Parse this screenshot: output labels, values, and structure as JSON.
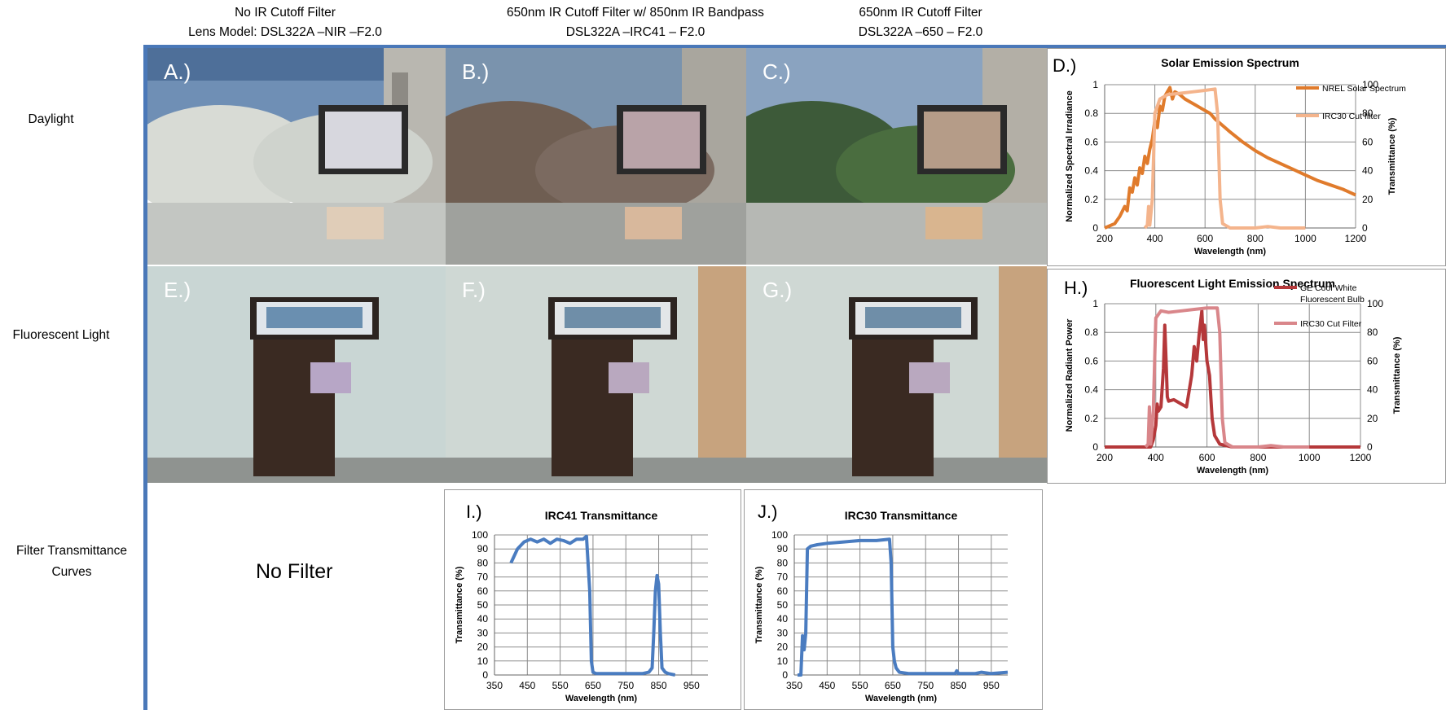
{
  "headers": {
    "col_a_line1": "No IR Cutoff Filter",
    "col_a_line2": "Lens Model:  DSL322A –NIR –F2.0",
    "col_b_line1": "650nm IR Cutoff Filter w/ 850nm IR Bandpass",
    "col_b_line2": "DSL322A –IRC41 – F2.0",
    "col_c_line1": "650nm IR Cutoff Filter",
    "col_c_line2": "DSL322A –650 – F2.0"
  },
  "rows": {
    "daylight": "Daylight",
    "fluorescent": "Fluorescent Light",
    "filter_line1": "Filter Transmittance",
    "filter_line2": "Curves"
  },
  "panels": {
    "a": "A.)",
    "b": "B.)",
    "c": "C.)",
    "e": "E.)",
    "f": "F.)",
    "g": "G.)"
  },
  "no_filter": "No Filter",
  "colors": {
    "frame": "#4a78b8",
    "solar": "#e07b2c",
    "irc30_light": "#f4b48c",
    "bulb": "#b5383a",
    "irc30_pink": "#d9868a",
    "transmittance": "#4a7cc0"
  },
  "chart_data": [
    {
      "id": "D",
      "panel_label": "D.)",
      "type": "line",
      "title": "Solar Emission Spectrum",
      "xlabel": "Wavelength (nm)",
      "ylabel": "Normalized Spectral Irradiance",
      "y2label": "Transmittance (%)",
      "xlim": [
        200,
        1200
      ],
      "xticks": [
        200,
        400,
        600,
        800,
        1000,
        1200
      ],
      "ylim": [
        0,
        1
      ],
      "yticks": [
        0,
        0.2,
        0.4,
        0.6,
        0.8,
        1
      ],
      "y2lim": [
        0,
        100
      ],
      "y2ticks": [
        0,
        20,
        40,
        60,
        80,
        100
      ],
      "grid": true,
      "legend": [
        "NREL Solar Spectrum",
        "IRC30 Cut filter"
      ],
      "series": [
        {
          "name": "NREL Solar Spectrum",
          "color": "#e07b2c",
          "axis": "y",
          "x": [
            200,
            240,
            260,
            280,
            290,
            300,
            310,
            320,
            330,
            340,
            350,
            360,
            370,
            380,
            390,
            400,
            410,
            420,
            430,
            440,
            450,
            460,
            470,
            480,
            500,
            520,
            540,
            560,
            580,
            600,
            620,
            640,
            660,
            680,
            700,
            750,
            800,
            850,
            900,
            950,
            1000,
            1050,
            1100,
            1150,
            1200
          ],
          "y": [
            0.0,
            0.03,
            0.08,
            0.15,
            0.12,
            0.28,
            0.25,
            0.35,
            0.3,
            0.42,
            0.38,
            0.5,
            0.45,
            0.55,
            0.62,
            0.75,
            0.7,
            0.85,
            0.82,
            0.92,
            0.95,
            0.98,
            0.9,
            0.95,
            0.93,
            0.9,
            0.88,
            0.86,
            0.84,
            0.82,
            0.8,
            0.76,
            0.73,
            0.7,
            0.67,
            0.6,
            0.54,
            0.49,
            0.45,
            0.41,
            0.37,
            0.33,
            0.3,
            0.27,
            0.23
          ]
        },
        {
          "name": "IRC30 Cut filter",
          "color": "#f4b48c",
          "axis": "y2",
          "x": [
            360,
            370,
            375,
            380,
            390,
            400,
            420,
            450,
            500,
            550,
            600,
            640,
            650,
            660,
            670,
            700,
            750,
            800,
            850,
            900,
            950,
            1000
          ],
          "y": [
            0,
            2,
            15,
            2,
            20,
            80,
            90,
            93,
            94,
            95,
            96,
            97,
            80,
            20,
            3,
            0,
            0,
            0,
            1,
            0,
            0,
            0
          ]
        }
      ]
    },
    {
      "id": "H",
      "panel_label": "H.)",
      "type": "line",
      "title": "Fluorescent Light Emission Spectrum",
      "xlabel": "Wavelength (nm)",
      "ylabel": "Normalized Radiant Power",
      "y2label": "Transmittance (%)",
      "xlim": [
        200,
        1200
      ],
      "xticks": [
        200,
        400,
        600,
        800,
        1000,
        1200
      ],
      "ylim": [
        0,
        1
      ],
      "yticks": [
        0,
        0.2,
        0.4,
        0.6,
        0.8,
        1
      ],
      "y2lim": [
        0,
        100
      ],
      "y2ticks": [
        0,
        20,
        40,
        60,
        80,
        100
      ],
      "grid": true,
      "legend": [
        "GE Cool White Fluorescent Bulb",
        "IRC30 Cut Filter"
      ],
      "series": [
        {
          "name": "GE Cool White Fluorescent Bulb",
          "color": "#b5383a",
          "axis": "y",
          "x": [
            200,
            380,
            390,
            400,
            405,
            410,
            420,
            430,
            435,
            440,
            445,
            450,
            470,
            500,
            520,
            540,
            550,
            560,
            570,
            580,
            585,
            590,
            600,
            610,
            620,
            630,
            650,
            700,
            800,
            1000,
            1200
          ],
          "y": [
            0,
            0,
            0.05,
            0.15,
            0.3,
            0.25,
            0.28,
            0.55,
            0.85,
            0.6,
            0.35,
            0.32,
            0.33,
            0.3,
            0.28,
            0.5,
            0.7,
            0.6,
            0.8,
            0.95,
            0.75,
            0.85,
            0.6,
            0.5,
            0.2,
            0.08,
            0.02,
            0,
            0,
            0,
            0
          ]
        },
        {
          "name": "IRC30 Cut Filter",
          "color": "#d9868a",
          "axis": "y2",
          "x": [
            360,
            370,
            375,
            380,
            390,
            400,
            420,
            450,
            500,
            550,
            600,
            640,
            650,
            660,
            670,
            700,
            750,
            800,
            850,
            900,
            950,
            1000
          ],
          "y": [
            0,
            2,
            28,
            2,
            25,
            90,
            95,
            94,
            95,
            96,
            97,
            97,
            80,
            20,
            3,
            0,
            0,
            0,
            1,
            0,
            0,
            0
          ]
        }
      ]
    },
    {
      "id": "I",
      "panel_label": "I.)",
      "type": "line",
      "title": "IRC41 Transmittance",
      "xlabel": "Wavelength (nm)",
      "ylabel": "Transmittance (%)",
      "xlim": [
        350,
        1000
      ],
      "xticks": [
        350,
        450,
        550,
        650,
        750,
        850,
        950
      ],
      "ylim": [
        0,
        100
      ],
      "yticks": [
        0,
        10,
        20,
        30,
        40,
        50,
        60,
        70,
        80,
        90,
        100
      ],
      "grid": true,
      "series": [
        {
          "name": "",
          "color": "#4a7cc0",
          "x": [
            400,
            420,
            440,
            460,
            480,
            500,
            520,
            540,
            560,
            580,
            600,
            620,
            630,
            640,
            645,
            650,
            660,
            700,
            750,
            800,
            820,
            830,
            835,
            840,
            845,
            850,
            855,
            860,
            870,
            880,
            900
          ],
          "y": [
            80,
            90,
            95,
            97,
            95,
            97,
            94,
            97,
            96,
            94,
            97,
            97,
            99,
            60,
            10,
            2,
            1,
            1,
            1,
            1,
            2,
            5,
            30,
            60,
            71,
            65,
            30,
            5,
            2,
            1,
            0
          ]
        }
      ]
    },
    {
      "id": "J",
      "panel_label": "J.)",
      "type": "line",
      "title": "IRC30 Transmittance",
      "xlabel": "Wavelength (nm)",
      "ylabel": "Transmittance (%)",
      "xlim": [
        350,
        1000
      ],
      "xticks": [
        350,
        450,
        550,
        650,
        750,
        850,
        950
      ],
      "ylim": [
        0,
        100
      ],
      "yticks": [
        0,
        10,
        20,
        30,
        40,
        50,
        60,
        70,
        80,
        90,
        100
      ],
      "grid": true,
      "series": [
        {
          "name": "",
          "color": "#4a7cc0",
          "x": [
            360,
            370,
            375,
            380,
            385,
            390,
            400,
            420,
            450,
            500,
            550,
            600,
            640,
            645,
            650,
            655,
            660,
            670,
            700,
            750,
            800,
            840,
            845,
            850,
            900,
            920,
            950,
            1000
          ],
          "y": [
            0,
            0,
            28,
            18,
            30,
            90,
            92,
            93,
            94,
            95,
            96,
            96,
            97,
            80,
            20,
            10,
            5,
            2,
            1,
            1,
            1,
            1,
            3,
            1,
            1,
            2,
            1,
            2
          ]
        }
      ]
    }
  ]
}
